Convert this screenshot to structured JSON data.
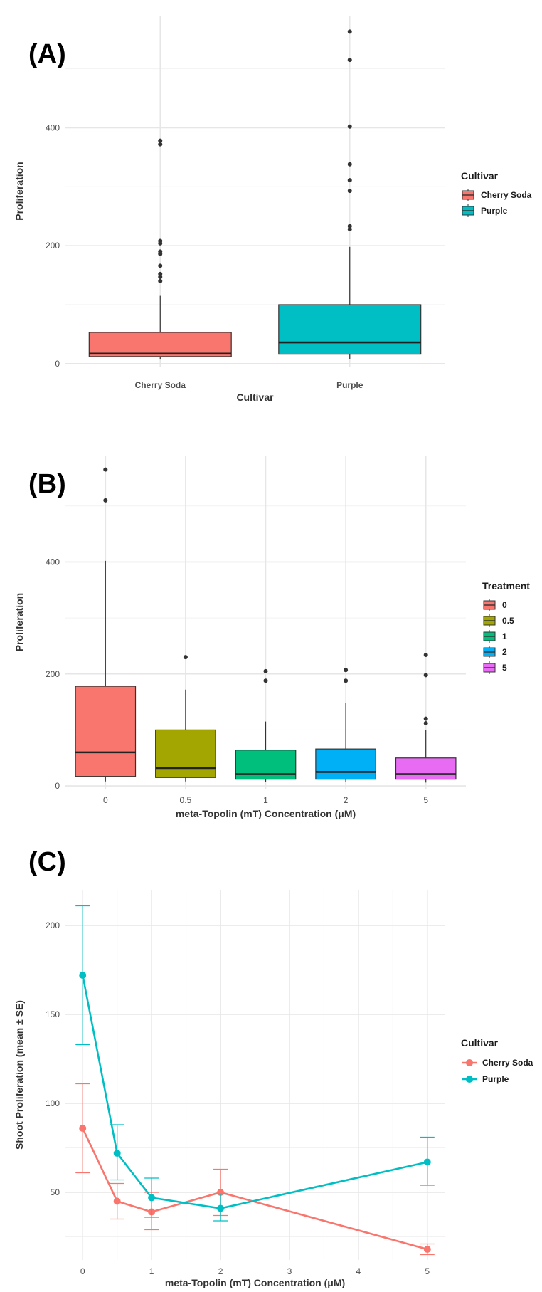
{
  "chart_data": [
    {
      "panel": "(A)",
      "type": "box",
      "xlabel": "Cultivar",
      "ylabel": "Proliferation",
      "ylim": [
        -5,
        590
      ],
      "yticks": [
        0,
        200,
        400
      ],
      "categories": [
        "Cherry Soda",
        "Purple"
      ],
      "colors": [
        "#F8766D",
        "#00BFC4"
      ],
      "boxes": [
        {
          "category": "Cherry Soda",
          "min": 7,
          "q1": 12,
          "median": 17,
          "q3": 53,
          "max": 115,
          "outliers": [
            140,
            147,
            152,
            166,
            186,
            190,
            204,
            208,
            372,
            378
          ]
        },
        {
          "category": "Purple",
          "min": 8,
          "q1": 16,
          "median": 36,
          "q3": 100,
          "max": 198,
          "outliers": [
            228,
            233,
            293,
            311,
            338,
            402,
            515,
            563
          ]
        }
      ],
      "legend": {
        "title": "Cultivar",
        "items": [
          "Cherry Soda",
          "Purple"
        ],
        "position": "right"
      },
      "grid": true
    },
    {
      "panel": "(B)",
      "type": "box",
      "xlabel": "meta-Topolin (mT) Concentration (μM)",
      "ylabel": "Proliferation",
      "ylim": [
        -5,
        590
      ],
      "yticks": [
        0,
        200,
        400
      ],
      "categories": [
        "0",
        "0.5",
        "1",
        "2",
        "5"
      ],
      "colors": [
        "#F8766D",
        "#A3A500",
        "#00BF7D",
        "#00B0F6",
        "#E76BF3"
      ],
      "boxes": [
        {
          "category": "0",
          "min": 8,
          "q1": 17,
          "median": 60,
          "q3": 178,
          "max": 402,
          "outliers": [
            510,
            565
          ]
        },
        {
          "category": "0.5",
          "min": 8,
          "q1": 15,
          "median": 32,
          "q3": 100,
          "max": 172,
          "outliers": [
            230
          ]
        },
        {
          "category": "1",
          "min": 7,
          "q1": 12,
          "median": 21,
          "q3": 64,
          "max": 115,
          "outliers": [
            188,
            205
          ]
        },
        {
          "category": "2",
          "min": 7,
          "q1": 12,
          "median": 25,
          "q3": 66,
          "max": 148,
          "outliers": [
            188,
            207
          ]
        },
        {
          "category": "5",
          "min": 6,
          "q1": 12,
          "median": 21,
          "q3": 50,
          "max": 100,
          "outliers": [
            112,
            120,
            198,
            234
          ]
        }
      ],
      "legend": {
        "title": "Treatment",
        "items": [
          "0",
          "0.5",
          "1",
          "2",
          "5"
        ],
        "position": "right"
      },
      "grid": true
    },
    {
      "panel": "(C)",
      "type": "line",
      "xlabel": "meta-Topolin (mT) Concentration (μM)",
      "ylabel": "Shoot Proliferation (mean ± SE)",
      "xlim": [
        -0.25,
        5.25
      ],
      "ylim": [
        12,
        220
      ],
      "xticks": [
        0,
        1,
        2,
        3,
        4,
        5
      ],
      "yticks": [
        50,
        100,
        150,
        200
      ],
      "x": [
        0,
        0.5,
        1,
        2,
        5
      ],
      "series": [
        {
          "name": "Cherry Soda",
          "color": "#F8766D",
          "values": [
            86,
            45,
            39,
            50,
            18
          ],
          "se_low": [
            61,
            35,
            29,
            37,
            15
          ],
          "se_high": [
            111,
            55,
            50,
            63,
            21
          ]
        },
        {
          "name": "Purple",
          "color": "#00BFC4",
          "values": [
            172,
            72,
            47,
            41,
            67
          ],
          "se_low": [
            133,
            57,
            36,
            34,
            54
          ],
          "se_high": [
            211,
            88,
            58,
            49,
            81
          ]
        }
      ],
      "legend": {
        "title": "Cultivar",
        "items": [
          "Cherry Soda",
          "Purple"
        ],
        "position": "right"
      },
      "grid": true
    }
  ]
}
